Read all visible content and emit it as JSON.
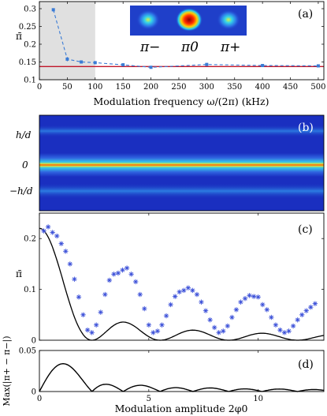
{
  "chart_data": [
    {
      "type": "line",
      "panel": "(a)",
      "xlabel": "Modulation frequency ω/(2π) (kHz)",
      "ylabel": "π̄",
      "xlim": [
        0,
        510
      ],
      "ylim": [
        0.1,
        0.32
      ],
      "xticks": [
        "0",
        "50",
        "100",
        "150",
        "200",
        "250",
        "300",
        "350",
        "400",
        "450",
        "500"
      ],
      "yticks": [
        "0.1",
        "0.15",
        "0.2",
        "0.25",
        "0.3"
      ],
      "shaded_region": [
        0,
        100
      ],
      "inset_labels": [
        "π−",
        "π0",
        "π+"
      ],
      "series": [
        {
          "style": "dashed-marker",
          "x": [
            25,
            50,
            75,
            100,
            150,
            200,
            300,
            400,
            500
          ],
          "y": [
            0.297,
            0.158,
            0.15,
            0.148,
            0.142,
            0.135,
            0.143,
            0.14,
            0.139
          ],
          "err": [
            0.004,
            0.006,
            0.004,
            0.004,
            0.003,
            0.003,
            0.004,
            0.003,
            0.003
          ]
        },
        {
          "style": "solid-reference",
          "y": 0.137
        }
      ]
    },
    {
      "type": "heatmap",
      "panel": "(b)",
      "ytick_labels": [
        "h/d",
        "0",
        "−h/d"
      ]
    },
    {
      "type": "line",
      "panel": "(c)",
      "ylabel": "π̄",
      "xlim": [
        0,
        13
      ],
      "ylim": [
        0,
        0.25
      ],
      "yticks": [
        "0",
        "0.1",
        "0.2"
      ],
      "theory": "0.22 · J0(2φ0)²",
      "points_x": [
        0.2,
        0.4,
        0.6,
        0.8,
        1.0,
        1.2,
        1.4,
        1.6,
        1.8,
        2.0,
        2.2,
        2.4,
        2.6,
        2.8,
        3.0,
        3.2,
        3.4,
        3.6,
        3.8,
        4.0,
        4.2,
        4.4,
        4.6,
        4.8,
        5.0,
        5.2,
        5.4,
        5.6,
        5.8,
        6.0,
        6.2,
        6.4,
        6.6,
        6.8,
        7.0,
        7.2,
        7.4,
        7.6,
        7.8,
        8.0,
        8.2,
        8.4,
        8.6,
        8.8,
        9.0,
        9.2,
        9.4,
        9.6,
        9.8,
        10.0,
        10.2,
        10.4,
        10.6,
        10.8,
        11.0,
        11.2,
        11.4,
        11.6,
        11.8,
        12.0,
        12.2,
        12.4,
        12.6
      ],
      "points_y": [
        0.215,
        0.223,
        0.212,
        0.205,
        0.19,
        0.175,
        0.15,
        0.12,
        0.085,
        0.05,
        0.02,
        0.015,
        0.03,
        0.055,
        0.09,
        0.118,
        0.13,
        0.132,
        0.138,
        0.142,
        0.13,
        0.115,
        0.09,
        0.062,
        0.03,
        0.015,
        0.018,
        0.03,
        0.048,
        0.07,
        0.086,
        0.095,
        0.098,
        0.103,
        0.098,
        0.09,
        0.075,
        0.058,
        0.04,
        0.025,
        0.015,
        0.018,
        0.028,
        0.045,
        0.06,
        0.075,
        0.082,
        0.088,
        0.086,
        0.085,
        0.07,
        0.06,
        0.045,
        0.03,
        0.02,
        0.015,
        0.018,
        0.028,
        0.04,
        0.05,
        0.058,
        0.065,
        0.072
      ]
    },
    {
      "type": "line",
      "panel": "(d)",
      "xlabel": "Modulation amplitude 2φ0",
      "ylabel": "Max(|π+ − π−|)",
      "xlim": [
        0,
        13
      ],
      "ylim": [
        0,
        0.05
      ],
      "xticks": [
        "0",
        "5",
        "10"
      ],
      "yticks": [
        "0",
        "0.05"
      ],
      "theory": "0.10 · |J0(2φ0) · J1(2φ0)|"
    }
  ]
}
